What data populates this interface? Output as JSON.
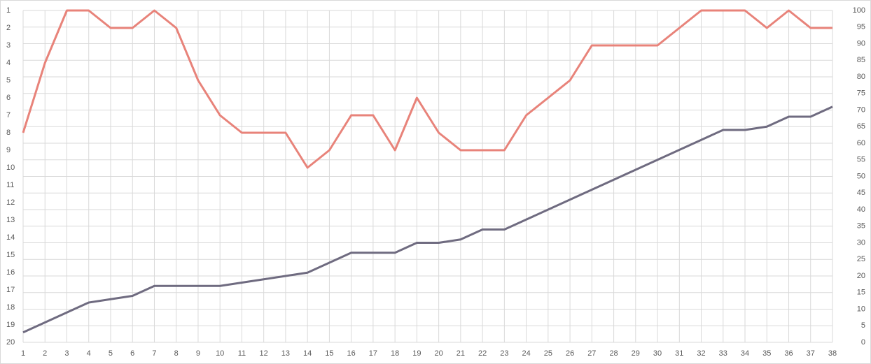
{
  "chart_data": {
    "type": "line",
    "categories": [
      1,
      2,
      3,
      4,
      5,
      6,
      7,
      8,
      9,
      10,
      11,
      12,
      13,
      14,
      15,
      16,
      17,
      18,
      19,
      20,
      21,
      22,
      23,
      24,
      25,
      26,
      27,
      28,
      29,
      30,
      31,
      32,
      33,
      34,
      35,
      36,
      37,
      38
    ],
    "series": [
      {
        "color": "#e8837a",
        "axis": "y",
        "values": [
          8,
          4,
          1,
          1,
          2,
          2,
          1,
          2,
          5,
          7,
          8,
          8,
          8,
          10,
          9,
          7,
          7,
          9,
          6,
          8,
          9,
          9,
          9,
          7,
          6,
          5,
          3,
          3,
          3,
          3,
          2,
          1,
          1,
          1,
          2,
          1,
          2,
          2
        ]
      },
      {
        "color": "#6f6b80",
        "axis": "y2",
        "values": [
          3,
          6,
          9,
          12,
          13,
          14,
          17,
          17,
          17,
          17,
          18,
          19,
          20,
          21,
          24,
          27,
          27,
          27,
          30,
          30,
          31,
          34,
          34,
          37,
          40,
          43,
          46,
          49,
          52,
          55,
          58,
          61,
          64,
          64,
          65,
          68,
          68,
          71
        ]
      }
    ],
    "ylim": [
      1,
      20
    ],
    "y_inverted": true,
    "yticks": [
      1,
      2,
      3,
      4,
      5,
      6,
      7,
      8,
      9,
      10,
      11,
      12,
      13,
      14,
      15,
      16,
      17,
      18,
      19,
      20
    ],
    "y2lim": [
      0,
      100
    ],
    "y2ticks": [
      0,
      5,
      10,
      15,
      20,
      25,
      30,
      35,
      40,
      45,
      50,
      55,
      60,
      65,
      70,
      75,
      80,
      85,
      90,
      95,
      100
    ],
    "grid": true
  }
}
